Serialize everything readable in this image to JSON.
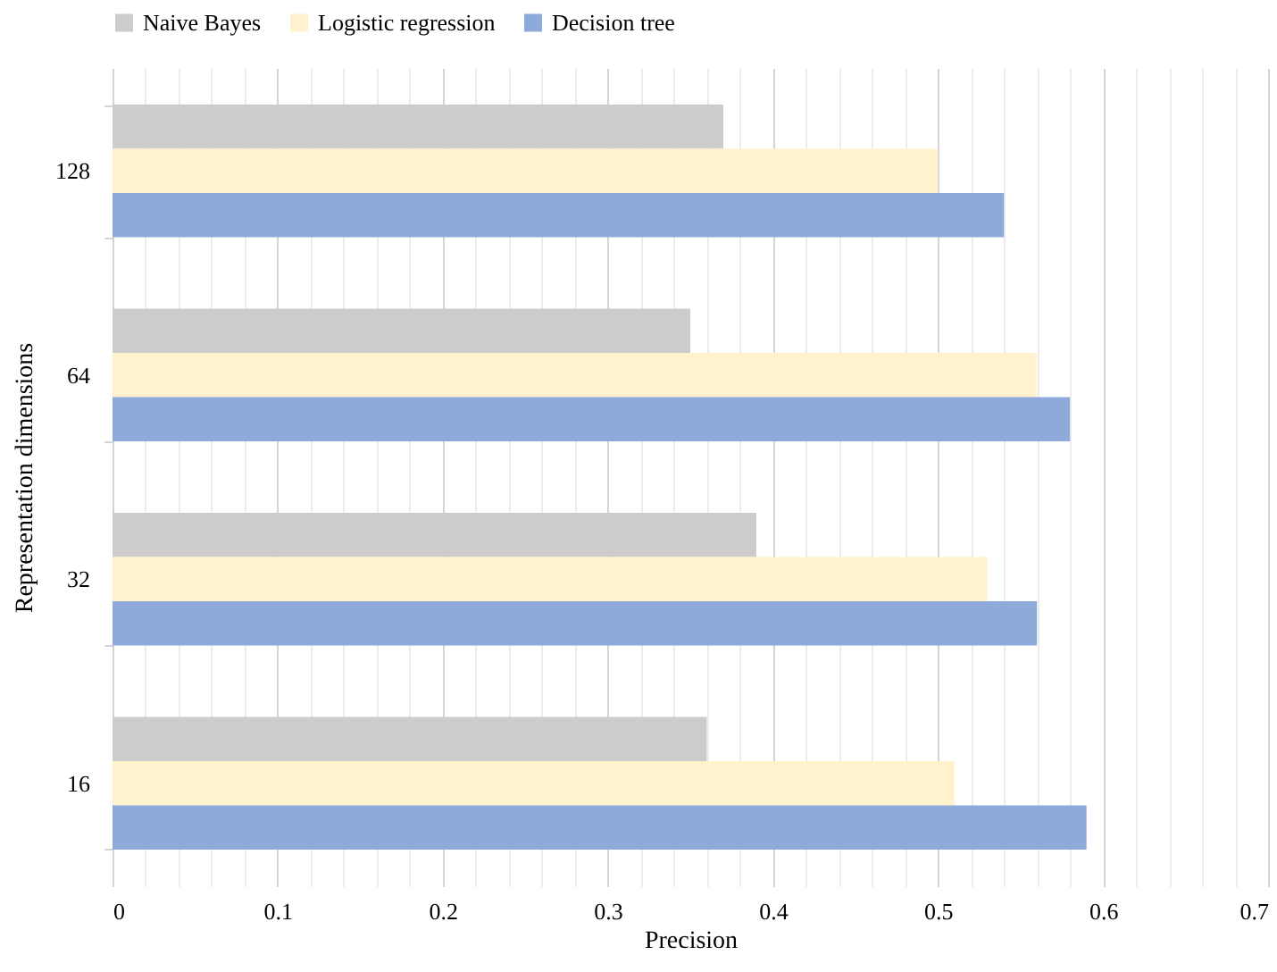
{
  "chart_data": {
    "type": "bar",
    "orientation": "horizontal",
    "xlabel": "Precision",
    "ylabel": "Representation dimensions",
    "categories": [
      "128",
      "64",
      "32",
      "16"
    ],
    "series": [
      {
        "name": "Naive Bayes",
        "color": "#cdcbcc",
        "values": [
          0.37,
          0.35,
          0.39,
          0.36
        ]
      },
      {
        "name": "Logistic regression",
        "color": "#fff2cc",
        "values": [
          0.5,
          0.56,
          0.53,
          0.51
        ]
      },
      {
        "name": "Decision tree",
        "color": "#8eaadb",
        "values": [
          0.54,
          0.58,
          0.56,
          0.59
        ]
      }
    ],
    "xlim": [
      0,
      0.7
    ],
    "xticks": [
      0,
      {
        "value": 0.02,
        "label": null
      },
      {
        "value": 0.04,
        "label": null
      },
      {
        "value": 0.06,
        "label": null
      },
      {
        "value": 0.08,
        "label": null
      },
      0.1,
      {
        "value": 0.12,
        "label": null
      },
      {
        "value": 0.14,
        "label": null
      },
      {
        "value": 0.16,
        "label": null
      },
      {
        "value": 0.18,
        "label": null
      },
      0.2,
      {
        "value": 0.22,
        "label": null
      },
      {
        "value": 0.24,
        "label": null
      },
      {
        "value": 0.26,
        "label": null
      },
      {
        "value": 0.28,
        "label": null
      },
      0.3,
      {
        "value": 0.32,
        "label": null
      },
      {
        "value": 0.34,
        "label": null
      },
      {
        "value": 0.36,
        "label": null
      },
      {
        "value": 0.38,
        "label": null
      },
      0.4,
      {
        "value": 0.42,
        "label": null
      },
      {
        "value": 0.44,
        "label": null
      },
      {
        "value": 0.46,
        "label": null
      },
      {
        "value": 0.48,
        "label": null
      },
      0.5,
      {
        "value": 0.52,
        "label": null
      },
      {
        "value": 0.54,
        "label": null
      },
      {
        "value": 0.56,
        "label": null
      },
      {
        "value": 0.58,
        "label": null
      },
      0.6,
      {
        "value": 0.62,
        "label": null
      },
      {
        "value": 0.64,
        "label": null
      },
      {
        "value": 0.66,
        "label": null
      },
      {
        "value": 0.68,
        "label": null
      },
      0.7
    ],
    "grid": "x",
    "legend": "top"
  }
}
